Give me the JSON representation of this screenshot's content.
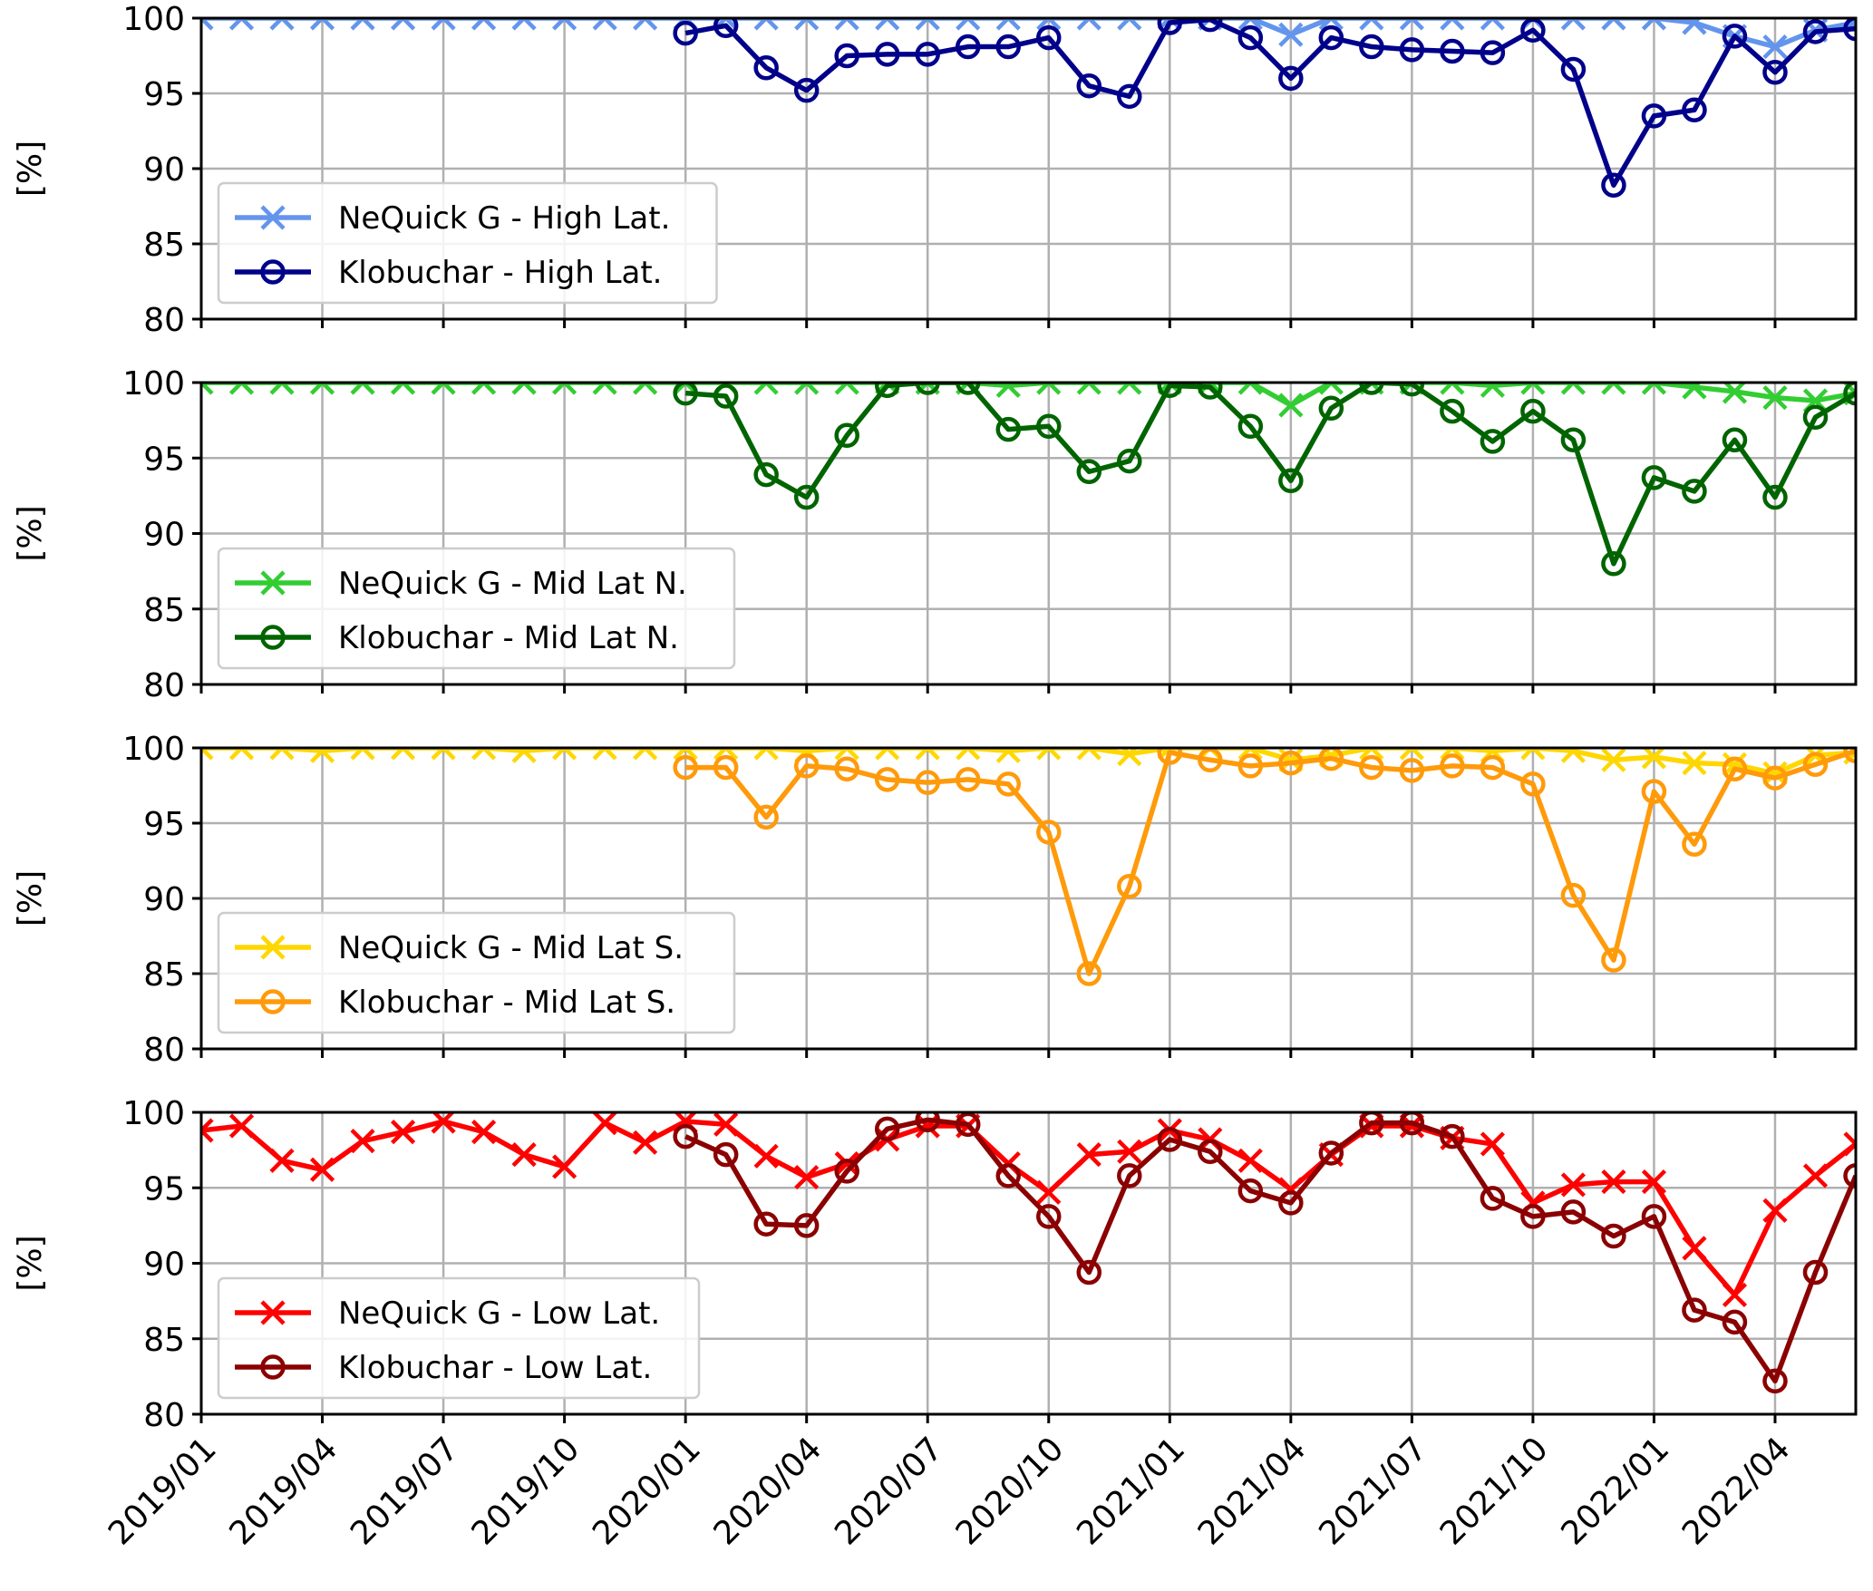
{
  "chart_data": [
    {
      "type": "line",
      "ylabel": "[%]",
      "ylim": [
        80,
        100
      ],
      "yticks": [
        "80",
        "85",
        "90",
        "95",
        "100"
      ],
      "grid": true,
      "legend_position": "lower-left",
      "series": [
        {
          "name": "NeQuick G - High Lat.",
          "color": "#6495ED",
          "marker": "x",
          "x": [
            "2019/01",
            "2019/02",
            "2019/03",
            "2019/04",
            "2019/05",
            "2019/06",
            "2019/07",
            "2019/08",
            "2019/09",
            "2019/10",
            "2019/11",
            "2019/12",
            "2020/01",
            "2020/02",
            "2020/03",
            "2020/04",
            "2020/05",
            "2020/06",
            "2020/07",
            "2020/08",
            "2020/09",
            "2020/10",
            "2020/11",
            "2020/12",
            "2021/01",
            "2021/02",
            "2021/03",
            "2021/04",
            "2021/05",
            "2021/06",
            "2021/07",
            "2021/08",
            "2021/09",
            "2021/10",
            "2021/11",
            "2021/12",
            "2022/01",
            "2022/02",
            "2022/03",
            "2022/04",
            "2022/05",
            "2022/06"
          ],
          "values": [
            100,
            100,
            100,
            100,
            100,
            100,
            100,
            100,
            100,
            100,
            100,
            100,
            100,
            100,
            100,
            100,
            100,
            100,
            100,
            100,
            100,
            100,
            100,
            100,
            100,
            100,
            100,
            98.9,
            100,
            100,
            100,
            100,
            100,
            100,
            100,
            100,
            100,
            99.7,
            98.8,
            98.1,
            99.2,
            99.7
          ]
        },
        {
          "name": "Klobuchar - High Lat.",
          "color": "#00008B",
          "marker": "o",
          "x": [
            "2020/01",
            "2020/02",
            "2020/03",
            "2020/04",
            "2020/05",
            "2020/06",
            "2020/07",
            "2020/08",
            "2020/09",
            "2020/10",
            "2020/11",
            "2020/12",
            "2021/01",
            "2021/02",
            "2021/03",
            "2021/04",
            "2021/05",
            "2021/06",
            "2021/07",
            "2021/08",
            "2021/09",
            "2021/10",
            "2021/11",
            "2021/12",
            "2022/01",
            "2022/02",
            "2022/03",
            "2022/04",
            "2022/05",
            "2022/06"
          ],
          "values": [
            99.0,
            99.5,
            96.7,
            95.2,
            97.5,
            97.6,
            97.6,
            98.1,
            98.1,
            98.7,
            95.5,
            94.8,
            99.7,
            99.9,
            98.7,
            96.0,
            98.7,
            98.1,
            97.9,
            97.8,
            97.7,
            99.2,
            96.6,
            88.9,
            93.5,
            93.9,
            98.8,
            96.4,
            99.1,
            99.3
          ]
        }
      ]
    },
    {
      "type": "line",
      "ylabel": "[%]",
      "ylim": [
        80,
        100
      ],
      "yticks": [
        "80",
        "85",
        "90",
        "95",
        "100"
      ],
      "grid": true,
      "legend_position": "lower-left",
      "series": [
        {
          "name": "NeQuick G - Mid Lat N.",
          "color": "#32CD32",
          "marker": "x",
          "x": [
            "2019/01",
            "2019/02",
            "2019/03",
            "2019/04",
            "2019/05",
            "2019/06",
            "2019/07",
            "2019/08",
            "2019/09",
            "2019/10",
            "2019/11",
            "2019/12",
            "2020/01",
            "2020/02",
            "2020/03",
            "2020/04",
            "2020/05",
            "2020/06",
            "2020/07",
            "2020/08",
            "2020/09",
            "2020/10",
            "2020/11",
            "2020/12",
            "2021/01",
            "2021/02",
            "2021/03",
            "2021/04",
            "2021/05",
            "2021/06",
            "2021/07",
            "2021/08",
            "2021/09",
            "2021/10",
            "2021/11",
            "2021/12",
            "2022/01",
            "2022/02",
            "2022/03",
            "2022/04",
            "2022/05",
            "2022/06"
          ],
          "values": [
            100,
            100,
            100,
            100,
            100,
            100,
            100,
            100,
            100,
            100,
            100,
            100,
            100,
            100,
            100,
            100,
            100,
            100,
            100,
            100,
            99.8,
            100,
            100,
            100,
            100,
            100,
            100,
            98.5,
            100,
            100,
            100,
            100,
            99.8,
            100,
            100,
            100,
            100,
            99.7,
            99.4,
            99.0,
            98.8,
            99.3
          ]
        },
        {
          "name": "Klobuchar - Mid Lat N.",
          "color": "#006400",
          "marker": "o",
          "x": [
            "2020/01",
            "2020/02",
            "2020/03",
            "2020/04",
            "2020/05",
            "2020/06",
            "2020/07",
            "2020/08",
            "2020/09",
            "2020/10",
            "2020/11",
            "2020/12",
            "2021/01",
            "2021/02",
            "2021/03",
            "2021/04",
            "2021/05",
            "2021/06",
            "2021/07",
            "2021/08",
            "2021/09",
            "2021/10",
            "2021/11",
            "2021/12",
            "2022/01",
            "2022/02",
            "2022/03",
            "2022/04",
            "2022/05",
            "2022/06"
          ],
          "values": [
            99.3,
            99.1,
            93.9,
            92.4,
            96.5,
            99.8,
            100,
            100,
            96.9,
            97.1,
            94.1,
            94.8,
            99.8,
            99.7,
            97.1,
            93.5,
            98.3,
            100,
            99.9,
            98.1,
            96.1,
            98.1,
            96.2,
            88.0,
            93.7,
            92.8,
            96.2,
            92.4,
            97.7,
            99.3
          ]
        }
      ]
    },
    {
      "type": "line",
      "ylabel": "[%]",
      "ylim": [
        80,
        100
      ],
      "yticks": [
        "80",
        "85",
        "90",
        "95",
        "100"
      ],
      "grid": true,
      "legend_position": "lower-left",
      "series": [
        {
          "name": "NeQuick G - Mid Lat S.",
          "color": "#FFD700",
          "marker": "x",
          "x": [
            "2019/01",
            "2019/02",
            "2019/03",
            "2019/04",
            "2019/05",
            "2019/06",
            "2019/07",
            "2019/08",
            "2019/09",
            "2019/10",
            "2019/11",
            "2019/12",
            "2020/01",
            "2020/02",
            "2020/03",
            "2020/04",
            "2020/05",
            "2020/06",
            "2020/07",
            "2020/08",
            "2020/09",
            "2020/10",
            "2020/11",
            "2020/12",
            "2021/01",
            "2021/02",
            "2021/03",
            "2021/04",
            "2021/05",
            "2021/06",
            "2021/07",
            "2021/08",
            "2021/09",
            "2021/10",
            "2021/11",
            "2021/12",
            "2022/01",
            "2022/02",
            "2022/03",
            "2022/04",
            "2022/05",
            "2022/06"
          ],
          "values": [
            100,
            100,
            100,
            99.8,
            100,
            100,
            100,
            100,
            99.8,
            100,
            100,
            100,
            100,
            100,
            100,
            99.8,
            100,
            100,
            100,
            100,
            99.8,
            100,
            100,
            99.6,
            100,
            100,
            100,
            99.2,
            99.5,
            100,
            100,
            100,
            99.8,
            100,
            99.8,
            99.2,
            99.4,
            99.0,
            98.9,
            98.3,
            99.5,
            99.7
          ]
        },
        {
          "name": "Klobuchar - Mid Lat S.",
          "color": "#FF9A0A",
          "marker": "o",
          "x": [
            "2020/01",
            "2020/02",
            "2020/03",
            "2020/04",
            "2020/05",
            "2020/06",
            "2020/07",
            "2020/08",
            "2020/09",
            "2020/10",
            "2020/11",
            "2020/12",
            "2021/01",
            "2021/02",
            "2021/03",
            "2021/04",
            "2021/05",
            "2021/06",
            "2021/07",
            "2021/08",
            "2021/09",
            "2021/10",
            "2021/11",
            "2021/12",
            "2022/01",
            "2022/02",
            "2022/03",
            "2022/04",
            "2022/05",
            "2022/06"
          ],
          "values": [
            98.7,
            98.7,
            95.4,
            98.8,
            98.6,
            97.9,
            97.7,
            97.9,
            97.6,
            94.4,
            85.0,
            90.8,
            99.7,
            99.2,
            98.8,
            99.0,
            99.3,
            98.7,
            98.5,
            98.8,
            98.7,
            97.6,
            90.2,
            85.9,
            97.1,
            93.6,
            98.6,
            98.0,
            98.9,
            99.8
          ]
        }
      ]
    },
    {
      "type": "line",
      "ylabel": "[%]",
      "ylim": [
        80,
        100
      ],
      "yticks": [
        "80",
        "85",
        "90",
        "95",
        "100"
      ],
      "xticks": [
        "2019/01",
        "2019/04",
        "2019/07",
        "2019/10",
        "2020/01",
        "2020/04",
        "2020/07",
        "2020/10",
        "2021/01",
        "2021/04",
        "2021/07",
        "2021/10",
        "2022/01",
        "2022/04"
      ],
      "grid": true,
      "legend_position": "lower-left",
      "series": [
        {
          "name": "NeQuick G - Low Lat.",
          "color": "#FF0000",
          "marker": "x",
          "x": [
            "2019/01",
            "2019/02",
            "2019/03",
            "2019/04",
            "2019/05",
            "2019/06",
            "2019/07",
            "2019/08",
            "2019/09",
            "2019/10",
            "2019/11",
            "2019/12",
            "2020/01",
            "2020/02",
            "2020/03",
            "2020/04",
            "2020/05",
            "2020/06",
            "2020/07",
            "2020/08",
            "2020/09",
            "2020/10",
            "2020/11",
            "2020/12",
            "2021/01",
            "2021/02",
            "2021/03",
            "2021/04",
            "2021/05",
            "2021/06",
            "2021/07",
            "2021/08",
            "2021/09",
            "2021/10",
            "2021/11",
            "2021/12",
            "2022/01",
            "2022/02",
            "2022/03",
            "2022/04",
            "2022/05",
            "2022/06"
          ],
          "values": [
            98.8,
            99.1,
            96.8,
            96.2,
            98.1,
            98.7,
            99.4,
            98.7,
            97.2,
            96.4,
            99.3,
            98.0,
            99.4,
            99.2,
            97.1,
            95.7,
            96.6,
            98.2,
            99.1,
            99.1,
            96.6,
            94.7,
            97.2,
            97.4,
            98.8,
            98.2,
            96.8,
            94.9,
            97.2,
            99.1,
            99.1,
            98.3,
            97.9,
            94.0,
            95.2,
            95.4,
            95.4,
            91.0,
            87.9,
            93.5,
            95.8,
            97.9
          ]
        },
        {
          "name": "Klobuchar - Low Lat.",
          "color": "#8B0000",
          "marker": "o",
          "x": [
            "2020/01",
            "2020/02",
            "2020/03",
            "2020/04",
            "2020/05",
            "2020/06",
            "2020/07",
            "2020/08",
            "2020/09",
            "2020/10",
            "2020/11",
            "2020/12",
            "2021/01",
            "2021/02",
            "2021/03",
            "2021/04",
            "2021/05",
            "2021/06",
            "2021/07",
            "2021/08",
            "2021/09",
            "2021/10",
            "2021/11",
            "2021/12",
            "2022/01",
            "2022/02",
            "2022/03",
            "2022/04",
            "2022/05",
            "2022/06"
          ],
          "values": [
            98.4,
            97.2,
            92.6,
            92.5,
            96.1,
            98.9,
            99.5,
            99.2,
            95.8,
            93.1,
            89.4,
            95.8,
            98.2,
            97.4,
            94.8,
            94.0,
            97.3,
            99.3,
            99.3,
            98.4,
            94.3,
            93.1,
            93.4,
            91.8,
            93.1,
            86.9,
            86.1,
            82.2,
            89.4,
            95.8
          ]
        }
      ]
    }
  ]
}
